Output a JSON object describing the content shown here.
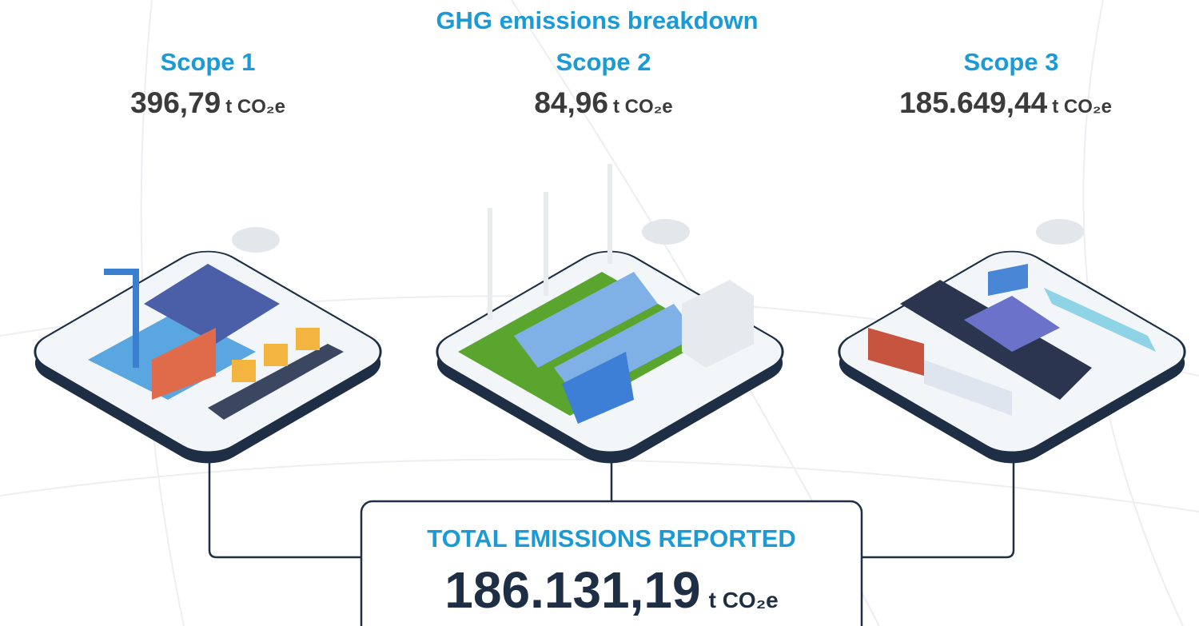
{
  "title": "GHG emissions breakdown",
  "scopes": [
    {
      "label": "Scope 1",
      "value": "396,79",
      "unit": "t CO₂e"
    },
    {
      "label": "Scope 2",
      "value": "84,96",
      "unit": "t CO₂e"
    },
    {
      "label": "Scope 3",
      "value": "185.649,44",
      "unit": "t CO₂e"
    }
  ],
  "total": {
    "label": "TOTAL EMISSIONS REPORTED",
    "value": "186.131,19",
    "unit": "t CO₂e"
  }
}
